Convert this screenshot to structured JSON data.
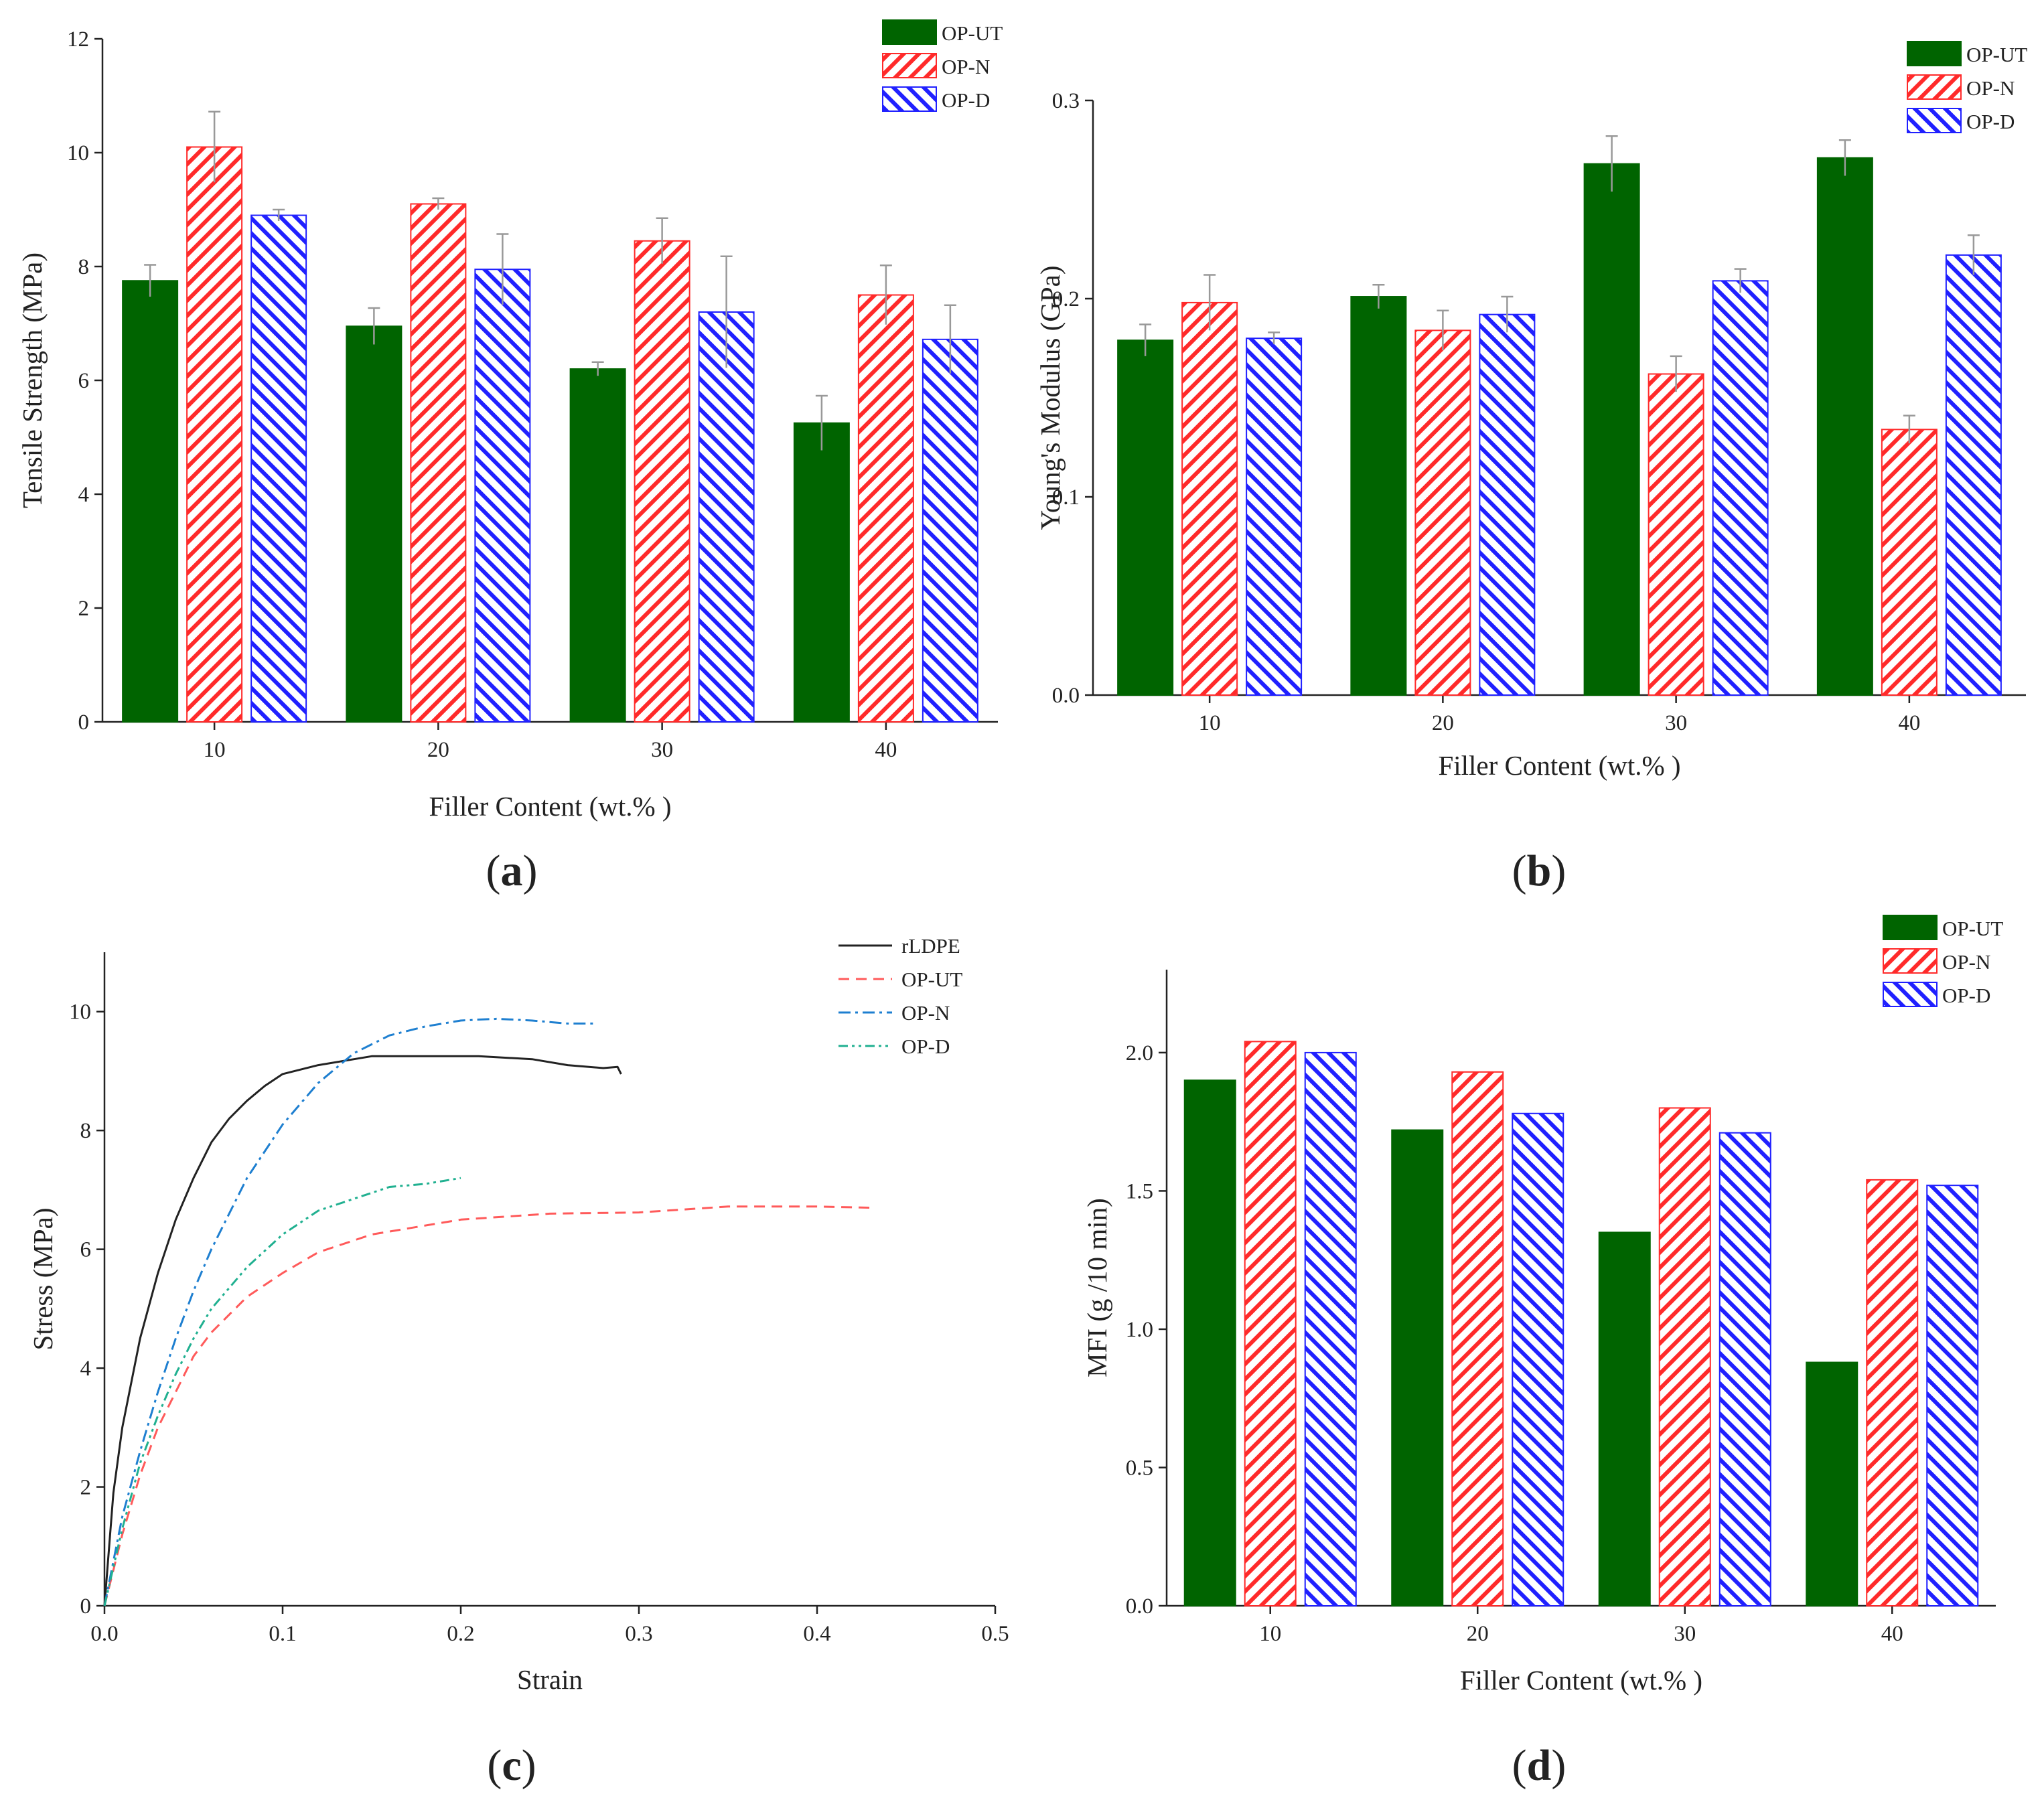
{
  "figure": {
    "panels": [
      {
        "label": "a"
      },
      {
        "label": "b"
      },
      {
        "label": "c"
      },
      {
        "label": "d"
      }
    ]
  },
  "colors": {
    "op_ut": "#006400",
    "op_n": "#ff2a2a",
    "op_d": "#2020ff",
    "rldpe": "#222222",
    "op_ut_line": "#ff5a5a",
    "op_n_line": "#1e7fd0",
    "op_d_line": "#20b090",
    "error_bar": "#999999"
  },
  "chart_data": [
    {
      "id": "a",
      "type": "bar",
      "categories": [
        "10",
        "20",
        "30",
        "40"
      ],
      "xlabel": "Filler Content (wt.% )",
      "ylabel": "Tensile Strength (MPa)",
      "ylim": [
        0,
        12
      ],
      "yticks": [
        "0",
        "2",
        "4",
        "6",
        "8",
        "10",
        "12"
      ],
      "series": [
        {
          "name": "OP-UT",
          "values": [
            7.75,
            6.95,
            6.2,
            5.25
          ],
          "errors": [
            0.28,
            0.32,
            0.12,
            0.48
          ]
        },
        {
          "name": "OP-N",
          "values": [
            10.1,
            9.1,
            8.45,
            7.5
          ],
          "errors": [
            0.62,
            0.1,
            0.4,
            0.52
          ]
        },
        {
          "name": "OP-D",
          "values": [
            8.9,
            7.95,
            7.2,
            6.72
          ],
          "errors": [
            0.1,
            0.62,
            0.98,
            0.6
          ]
        }
      ],
      "legend": "top-right"
    },
    {
      "id": "b",
      "type": "bar",
      "categories": [
        "10",
        "20",
        "30",
        "40"
      ],
      "xlabel": "Filler Content (wt.% )",
      "ylabel": "Young's Modulus (GPa)",
      "ylim": [
        0,
        0.3
      ],
      "yticks": [
        "0.0",
        "0.1",
        "0.2",
        "0.3"
      ],
      "series": [
        {
          "name": "OP-UT",
          "values": [
            0.179,
            0.201,
            0.268,
            0.271
          ],
          "errors": [
            0.008,
            0.006,
            0.014,
            0.009
          ]
        },
        {
          "name": "OP-N",
          "values": [
            0.198,
            0.184,
            0.162,
            0.134
          ],
          "errors": [
            0.014,
            0.01,
            0.009,
            0.007
          ]
        },
        {
          "name": "OP-D",
          "values": [
            0.18,
            0.192,
            0.209,
            0.222
          ],
          "errors": [
            0.003,
            0.009,
            0.006,
            0.01
          ]
        }
      ],
      "legend": "top-right"
    },
    {
      "id": "c",
      "type": "line",
      "xlabel": "Strain",
      "ylabel": "Stress (MPa)",
      "xlim": [
        0,
        0.5
      ],
      "ylim": [
        0,
        11
      ],
      "xticks": [
        "0.0",
        "0.1",
        "0.2",
        "0.3",
        "0.4",
        "0.5"
      ],
      "yticks": [
        "0",
        "2",
        "4",
        "6",
        "8",
        "10"
      ],
      "series": [
        {
          "name": "rLDPE",
          "style": "solid",
          "x": [
            0,
            0.005,
            0.01,
            0.02,
            0.03,
            0.04,
            0.05,
            0.06,
            0.07,
            0.08,
            0.09,
            0.1,
            0.12,
            0.15,
            0.18,
            0.21,
            0.24,
            0.26,
            0.28,
            0.288,
            0.29
          ],
          "y": [
            0,
            1.9,
            3.0,
            4.5,
            5.6,
            6.5,
            7.2,
            7.8,
            8.2,
            8.5,
            8.75,
            8.95,
            9.1,
            9.25,
            9.25,
            9.25,
            9.2,
            9.1,
            9.05,
            9.07,
            8.95
          ]
        },
        {
          "name": "OP-UT",
          "style": "dashed",
          "x": [
            0,
            0.01,
            0.02,
            0.03,
            0.04,
            0.05,
            0.06,
            0.08,
            0.1,
            0.12,
            0.15,
            0.2,
            0.25,
            0.3,
            0.35,
            0.4,
            0.43
          ],
          "y": [
            0,
            1.2,
            2.2,
            3.0,
            3.6,
            4.2,
            4.6,
            5.2,
            5.6,
            5.95,
            6.25,
            6.5,
            6.6,
            6.62,
            6.72,
            6.72,
            6.7
          ]
        },
        {
          "name": "OP-N",
          "style": "dashdot",
          "x": [
            0,
            0.01,
            0.02,
            0.03,
            0.04,
            0.05,
            0.06,
            0.08,
            0.1,
            0.12,
            0.14,
            0.16,
            0.18,
            0.2,
            0.22,
            0.24,
            0.26,
            0.275
          ],
          "y": [
            0,
            1.5,
            2.6,
            3.6,
            4.5,
            5.3,
            6.0,
            7.2,
            8.1,
            8.8,
            9.3,
            9.6,
            9.75,
            9.85,
            9.88,
            9.85,
            9.8,
            9.8
          ]
        },
        {
          "name": "OP-D",
          "style": "dashdotdot",
          "x": [
            0,
            0.01,
            0.02,
            0.03,
            0.04,
            0.05,
            0.06,
            0.08,
            0.1,
            0.12,
            0.14,
            0.16,
            0.18,
            0.2
          ],
          "y": [
            0,
            1.3,
            2.4,
            3.2,
            3.9,
            4.5,
            5.0,
            5.7,
            6.25,
            6.65,
            6.85,
            7.05,
            7.1,
            7.2
          ]
        }
      ],
      "legend": "top-right"
    },
    {
      "id": "d",
      "type": "bar",
      "categories": [
        "10",
        "20",
        "30",
        "40"
      ],
      "xlabel": "Filler Content (wt.% )",
      "ylabel": "MFI (g /10 min)",
      "ylim": [
        0,
        2.3
      ],
      "yticks": [
        "0.0",
        "0.5",
        "1.0",
        "1.5",
        "2.0"
      ],
      "series": [
        {
          "name": "OP-UT",
          "values": [
            1.9,
            1.72,
            1.35,
            0.88
          ]
        },
        {
          "name": "OP-N",
          "values": [
            2.04,
            1.93,
            1.8,
            1.54
          ]
        },
        {
          "name": "OP-D",
          "values": [
            2.0,
            1.78,
            1.71,
            1.52
          ]
        }
      ],
      "legend": "top-right"
    }
  ]
}
